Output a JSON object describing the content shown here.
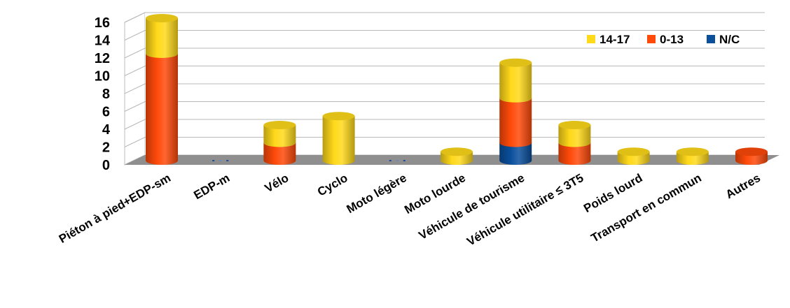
{
  "chart_data": {
    "type": "bar",
    "stacked": true,
    "style": "3d-cylinder",
    "categories": [
      "Piéton à pied+EDP-sm",
      "EDP-m",
      "Vélo",
      "Cyclo",
      "Moto légère",
      "Moto lourde",
      "Véhicule de tourisme",
      "Véhicule utilitaire ≤ 3T5",
      "Poids lourd",
      "Transport en commun",
      "Autres"
    ],
    "series": [
      {
        "name": "N/C",
        "color": "#0a4f9c",
        "values": [
          0,
          0,
          0,
          0,
          0,
          0,
          2,
          0,
          0,
          0,
          0
        ]
      },
      {
        "name": "0-13",
        "color": "#ff4a0a",
        "values": [
          12,
          0,
          2,
          0,
          0,
          0,
          5,
          2,
          0,
          0,
          1
        ]
      },
      {
        "name": "14-17",
        "color": "#ffd91a",
        "values": [
          4,
          0,
          2,
          5,
          0,
          1,
          4,
          2,
          1,
          1,
          0
        ]
      }
    ],
    "legend_order": [
      "14-17",
      "0-13",
      "N/C"
    ],
    "legend_position": "top-right",
    "ylim": [
      0,
      16
    ],
    "yticks": [
      "0",
      "2",
      "4",
      "6",
      "8",
      "10",
      "12",
      "14",
      "16"
    ],
    "grid": true,
    "title": "",
    "xlabel": "",
    "ylabel": ""
  }
}
